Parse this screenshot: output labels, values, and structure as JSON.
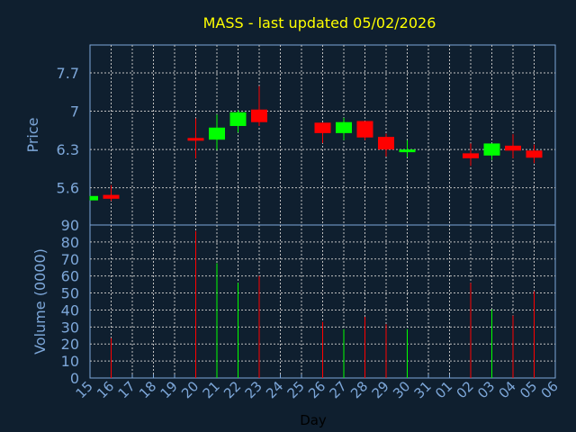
{
  "chart_data": [
    {
      "type": "candlestick",
      "title": "MASS - last updated 05/02/2026",
      "ylabel": "Price",
      "ylim": [
        4.92,
        8.21
      ],
      "yticks": [
        "5.6",
        "6.3",
        "7",
        "7.7"
      ],
      "ytick_values": [
        5.6,
        6.3,
        7.0,
        7.7
      ],
      "grid": true,
      "colors": {
        "up": "#00ff00",
        "down": "#ff0000",
        "title": "#ffff00",
        "axis": "#7da7d9"
      },
      "candles": [
        {
          "day": "15",
          "open": 5.37,
          "high": 5.45,
          "low": 5.37,
          "close": 5.45
        },
        {
          "day": "16",
          "open": 5.47,
          "high": 5.65,
          "low": 5.36,
          "close": 5.4
        },
        {
          "day": "20",
          "open": 6.51,
          "high": 6.87,
          "low": 6.14,
          "close": 6.48
        },
        {
          "day": "21",
          "open": 6.48,
          "high": 6.94,
          "low": 6.29,
          "close": 6.7
        },
        {
          "day": "22",
          "open": 6.73,
          "high": 7.02,
          "low": 6.61,
          "close": 6.98
        },
        {
          "day": "23",
          "open": 7.03,
          "high": 7.46,
          "low": 6.73,
          "close": 6.8
        },
        {
          "day": "26",
          "open": 6.79,
          "high": 6.79,
          "low": 6.42,
          "close": 6.6
        },
        {
          "day": "27",
          "open": 6.6,
          "high": 6.88,
          "low": 6.47,
          "close": 6.8
        },
        {
          "day": "28",
          "open": 6.82,
          "high": 6.82,
          "low": 6.47,
          "close": 6.52
        },
        {
          "day": "29",
          "open": 6.53,
          "high": 6.59,
          "low": 6.17,
          "close": 6.3
        },
        {
          "day": "30",
          "open": 6.26,
          "high": 6.47,
          "low": 6.16,
          "close": 6.3
        },
        {
          "day": "02",
          "open": 6.23,
          "high": 6.41,
          "low": 6.0,
          "close": 6.14
        },
        {
          "day": "03",
          "open": 6.19,
          "high": 6.41,
          "low": 6.11,
          "close": 6.41
        },
        {
          "day": "04",
          "open": 6.37,
          "high": 6.58,
          "low": 6.14,
          "close": 6.28
        },
        {
          "day": "05",
          "open": 6.28,
          "high": 6.39,
          "low": 6.05,
          "close": 6.15
        }
      ]
    },
    {
      "type": "bar",
      "ylabel": "Volume (0000)",
      "xlabel": "Day",
      "ylim": [
        0,
        90
      ],
      "yticks": [
        "0",
        "10",
        "20",
        "30",
        "40",
        "50",
        "60",
        "70",
        "80",
        "90"
      ],
      "categories": [
        "15",
        "16",
        "17",
        "18",
        "19",
        "20",
        "21",
        "22",
        "23",
        "24",
        "25",
        "26",
        "27",
        "28",
        "29",
        "30",
        "31",
        "01",
        "02",
        "03",
        "04",
        "05",
        "06"
      ],
      "bars": [
        {
          "day": "16",
          "value": 23.5,
          "dir": "down"
        },
        {
          "day": "20",
          "value": 86.4,
          "dir": "down"
        },
        {
          "day": "21",
          "value": 67.5,
          "dir": "up"
        },
        {
          "day": "22",
          "value": 56,
          "dir": "up"
        },
        {
          "day": "23",
          "value": 60,
          "dir": "down"
        },
        {
          "day": "26",
          "value": 33,
          "dir": "down"
        },
        {
          "day": "27",
          "value": 28.7,
          "dir": "up"
        },
        {
          "day": "28",
          "value": 36,
          "dir": "down"
        },
        {
          "day": "29",
          "value": 31.6,
          "dir": "down"
        },
        {
          "day": "30",
          "value": 28.7,
          "dir": "up"
        },
        {
          "day": "02",
          "value": 56,
          "dir": "down"
        },
        {
          "day": "03",
          "value": 40.4,
          "dir": "up"
        },
        {
          "day": "04",
          "value": 36.8,
          "dir": "down"
        },
        {
          "day": "05",
          "value": 51,
          "dir": "down"
        }
      ]
    }
  ]
}
